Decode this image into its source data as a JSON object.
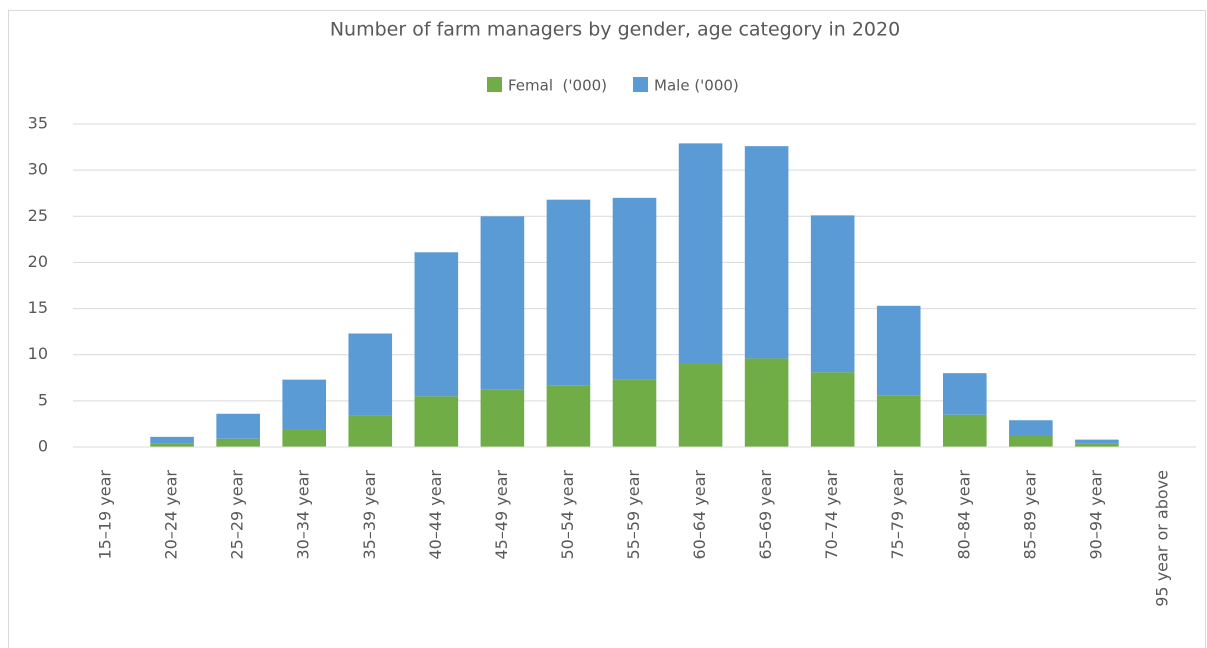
{
  "chart_data": {
    "type": "stacked_bar",
    "title": "Number of farm managers by gender, age category in 2020",
    "categories": [
      "15–19 year",
      "20–24 year",
      "25–29 year",
      "30–34 year",
      "35–39 year",
      "40–44 year",
      "45–49 year",
      "50–54 year",
      "55–59 year",
      "60–64 year",
      "65–69 year",
      "70–74 year",
      "75–79 year",
      "80–84 year",
      "85–89 year",
      "90–94 year",
      "95 year or above"
    ],
    "series": [
      {
        "name": "Femal  ('000)",
        "color": "#70ad47",
        "values": [
          0,
          0.4,
          0.9,
          1.9,
          3.4,
          5.5,
          6.2,
          6.7,
          7.3,
          9.1,
          9.6,
          8.1,
          5.6,
          3.5,
          1.3,
          0.4,
          0
        ]
      },
      {
        "name": "Male ('000)",
        "color": "#5b9bd5",
        "values": [
          0,
          0.7,
          2.7,
          5.4,
          8.9,
          15.6,
          18.8,
          20.1,
          19.7,
          23.8,
          23.0,
          17.0,
          9.7,
          4.5,
          1.6,
          0.4,
          0
        ]
      }
    ],
    "ylim": [
      0,
      35
    ],
    "yticks": [
      0,
      5,
      10,
      15,
      20,
      25,
      30,
      35
    ],
    "grid": true,
    "legend": "top"
  }
}
